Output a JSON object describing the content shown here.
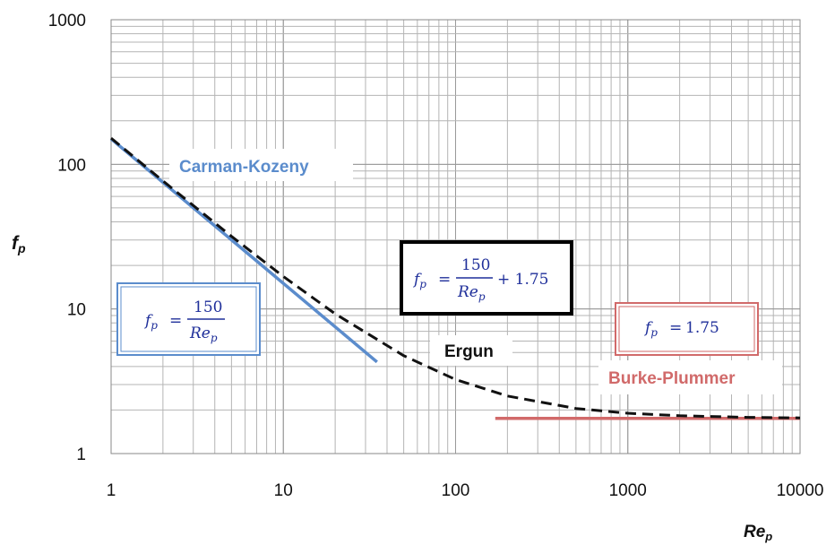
{
  "chart_data": {
    "type": "line",
    "x_scale": "log",
    "y_scale": "log",
    "xlim": [
      1,
      10000
    ],
    "ylim": [
      1,
      1000
    ],
    "grid": true,
    "xlabel": "Re",
    "xlabel_sub": "p",
    "ylabel": "f",
    "ylabel_sub": "p",
    "x_ticks": [
      "1",
      "10",
      "100",
      "1000",
      "10000"
    ],
    "y_ticks": [
      "1",
      "10",
      "100",
      "1000"
    ],
    "series": [
      {
        "name": "Carman-Kozeny",
        "color": "#5b8ccc",
        "style": "solid",
        "x": [
          1,
          35
        ],
        "y": [
          150,
          4.3
        ]
      },
      {
        "name": "Ergun",
        "color": "#111111",
        "style": "dashed",
        "x": [
          1,
          2,
          5,
          10,
          20,
          50,
          100,
          200,
          500,
          1000,
          2000,
          5000,
          10000
        ],
        "y": [
          151.75,
          76.75,
          31.75,
          16.75,
          9.25,
          4.75,
          3.25,
          2.5,
          2.05,
          1.9,
          1.825,
          1.78,
          1.765
        ]
      },
      {
        "name": "Burke-Plummer",
        "color": "#d16a6a",
        "style": "solid",
        "x": [
          170,
          10000
        ],
        "y": [
          1.75,
          1.75
        ]
      }
    ],
    "annotations": {
      "ck_equation": {
        "lhs": "f",
        "lhs_sub": "p",
        "op": "=",
        "num": "150",
        "den": "Re",
        "den_sub": "p"
      },
      "ergun_equation": {
        "lhs": "f",
        "lhs_sub": "p",
        "op": "=",
        "num": "150",
        "den": "Re",
        "den_sub": "p",
        "rest": "+ 1.75"
      },
      "bp_equation": {
        "lhs": "f",
        "lhs_sub": "p",
        "op": "=",
        "rhs": "1.75"
      }
    }
  }
}
